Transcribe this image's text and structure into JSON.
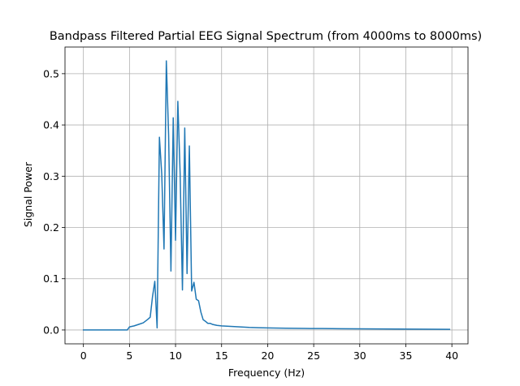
{
  "chart_data": {
    "type": "line",
    "title": "Bandpass Filtered Partial EEG Signal Spectrum (from 4000ms to 8000ms)",
    "xlabel": "Frequency (Hz)",
    "ylabel": "Signal Power",
    "xlim": [
      -2,
      41.75
    ],
    "ylim": [
      -0.027,
      0.552
    ],
    "xticks": [
      0,
      5,
      10,
      15,
      20,
      25,
      30,
      35,
      40
    ],
    "xtick_labels": [
      "0",
      "5",
      "10",
      "15",
      "20",
      "25",
      "30",
      "35",
      "40"
    ],
    "yticks": [
      0.0,
      0.1,
      0.2,
      0.3,
      0.4,
      0.5
    ],
    "ytick_labels": [
      "0.0",
      "0.1",
      "0.2",
      "0.3",
      "0.4",
      "0.5"
    ],
    "grid": true,
    "series": [
      {
        "color": "#1f77b4",
        "x": [
          0,
          0.5,
          1,
          1.5,
          2,
          2.5,
          3,
          3.5,
          4,
          4.5,
          4.75,
          5,
          5.5,
          6,
          6.5,
          7,
          7.25,
          7.5,
          7.75,
          8,
          8.25,
          8.5,
          8.75,
          9,
          9.25,
          9.5,
          9.75,
          10,
          10.25,
          10.5,
          10.75,
          11,
          11.25,
          11.5,
          11.75,
          12,
          12.25,
          12.5,
          12.75,
          13,
          13.25,
          13.5,
          13.75,
          14,
          14.5,
          15,
          16,
          17,
          18,
          19,
          20,
          22,
          24,
          26,
          28,
          30,
          32,
          34,
          36,
          38,
          39.75
        ],
        "values": [
          0.0,
          0.0,
          0.0,
          0.0,
          0.0,
          0.0,
          0.0,
          0.0,
          0.0,
          0.0,
          0.0,
          0.006,
          0.008,
          0.011,
          0.014,
          0.021,
          0.025,
          0.065,
          0.095,
          0.004,
          0.376,
          0.305,
          0.158,
          0.525,
          0.38,
          0.115,
          0.414,
          0.175,
          0.446,
          0.305,
          0.078,
          0.394,
          0.11,
          0.359,
          0.076,
          0.093,
          0.06,
          0.057,
          0.035,
          0.02,
          0.017,
          0.013,
          0.013,
          0.011,
          0.009,
          0.008,
          0.007,
          0.006,
          0.005,
          0.0045,
          0.004,
          0.0035,
          0.003,
          0.0028,
          0.0025,
          0.0023,
          0.0021,
          0.0019,
          0.0017,
          0.0015,
          0.0013
        ]
      }
    ]
  }
}
